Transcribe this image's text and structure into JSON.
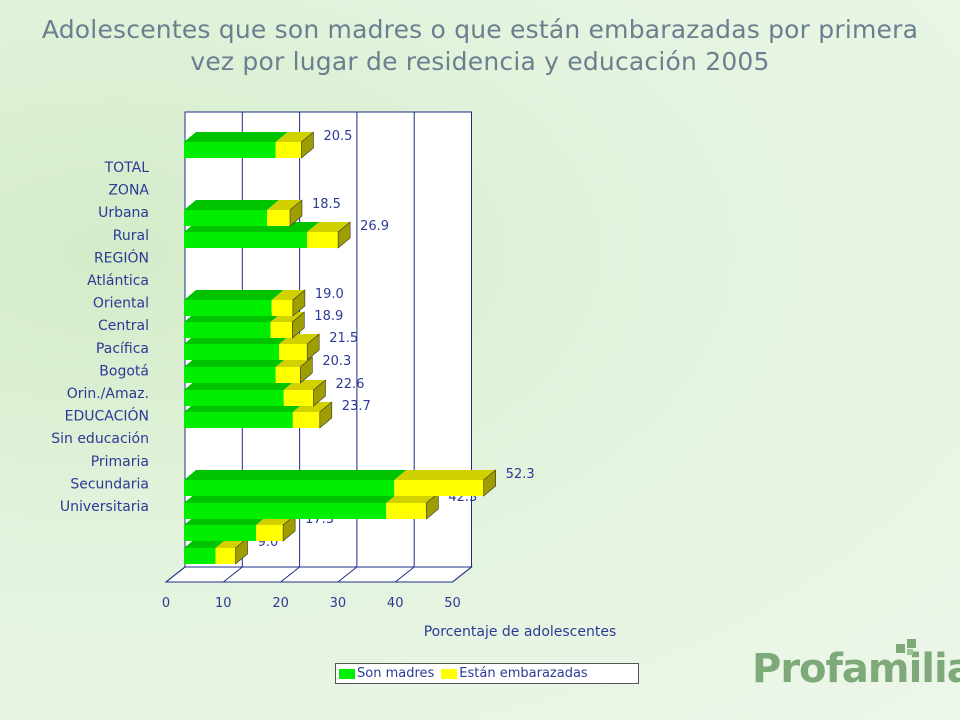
{
  "title": {
    "line1": "Adolescentes que son madres o que están embarazadas por primera",
    "line2": "vez por lugar de residencia y educación 2005"
  },
  "colors": {
    "son_madres": "#00ee00",
    "embarazadas": "#ffff00",
    "label": "#2c3a96",
    "grid": "#1c2f86"
  },
  "chart_data": {
    "type": "bar",
    "orientation": "horizontal",
    "stacked": true,
    "xlabel": "Porcentaje de adolescentes",
    "xlim": [
      0,
      50
    ],
    "xticks": [
      "0",
      "10",
      "20",
      "30",
      "40",
      "50"
    ],
    "categories": [
      "TOTAL",
      "ZONA",
      "Urbana",
      "Rural",
      "REGIÓN",
      "Atlántica",
      "Oriental",
      "Central",
      "Pacífica",
      "Bogotá",
      "Orin./Amaz.",
      "EDUCACIÓN",
      "Sin educación",
      "Primaria",
      "Secundaria",
      "Universitaria"
    ],
    "bars": [
      {
        "category": "TOTAL",
        "son_madres": 16.0,
        "embarazadas": 4.5,
        "total_label": "20.5"
      },
      {
        "category": "Urbana",
        "son_madres": 14.5,
        "embarazadas": 4.0,
        "total_label": "18.5"
      },
      {
        "category": "Rural",
        "son_madres": 21.5,
        "embarazadas": 5.4,
        "total_label": "26.9"
      },
      {
        "category": "Atlántica",
        "son_madres": 15.3,
        "embarazadas": 3.7,
        "total_label": "19.0"
      },
      {
        "category": "Oriental",
        "son_madres": 15.1,
        "embarazadas": 3.8,
        "total_label": "18.9"
      },
      {
        "category": "Central",
        "son_madres": 16.6,
        "embarazadas": 4.9,
        "total_label": "21.5"
      },
      {
        "category": "Pacífica",
        "son_madres": 16.0,
        "embarazadas": 4.3,
        "total_label": "20.3"
      },
      {
        "category": "Bogotá",
        "son_madres": 17.4,
        "embarazadas": 5.2,
        "total_label": "22.6"
      },
      {
        "category": "Orin./Amaz.",
        "son_madres": 19.0,
        "embarazadas": 4.7,
        "total_label": "23.7"
      },
      {
        "category": "Sin educación",
        "son_madres": 36.7,
        "embarazadas": 15.6,
        "total_label": "52.3"
      },
      {
        "category": "Primaria",
        "son_madres": 35.3,
        "embarazadas": 7.0,
        "total_label": "42.3"
      },
      {
        "category": "Secundaria",
        "son_madres": 12.6,
        "embarazadas": 4.7,
        "total_label": "17.3"
      },
      {
        "category": "Universitaria",
        "son_madres": 5.5,
        "embarazadas": 3.5,
        "total_label": "9.0"
      }
    ],
    "series": [
      {
        "name": "Son madres"
      },
      {
        "name": "Están embarazadas"
      }
    ],
    "legend": "bottom",
    "grid": true
  },
  "legend": {
    "son_madres": "Son madres",
    "embarazadas": "Están embarazadas"
  },
  "logo": {
    "text": "Profamilia"
  }
}
